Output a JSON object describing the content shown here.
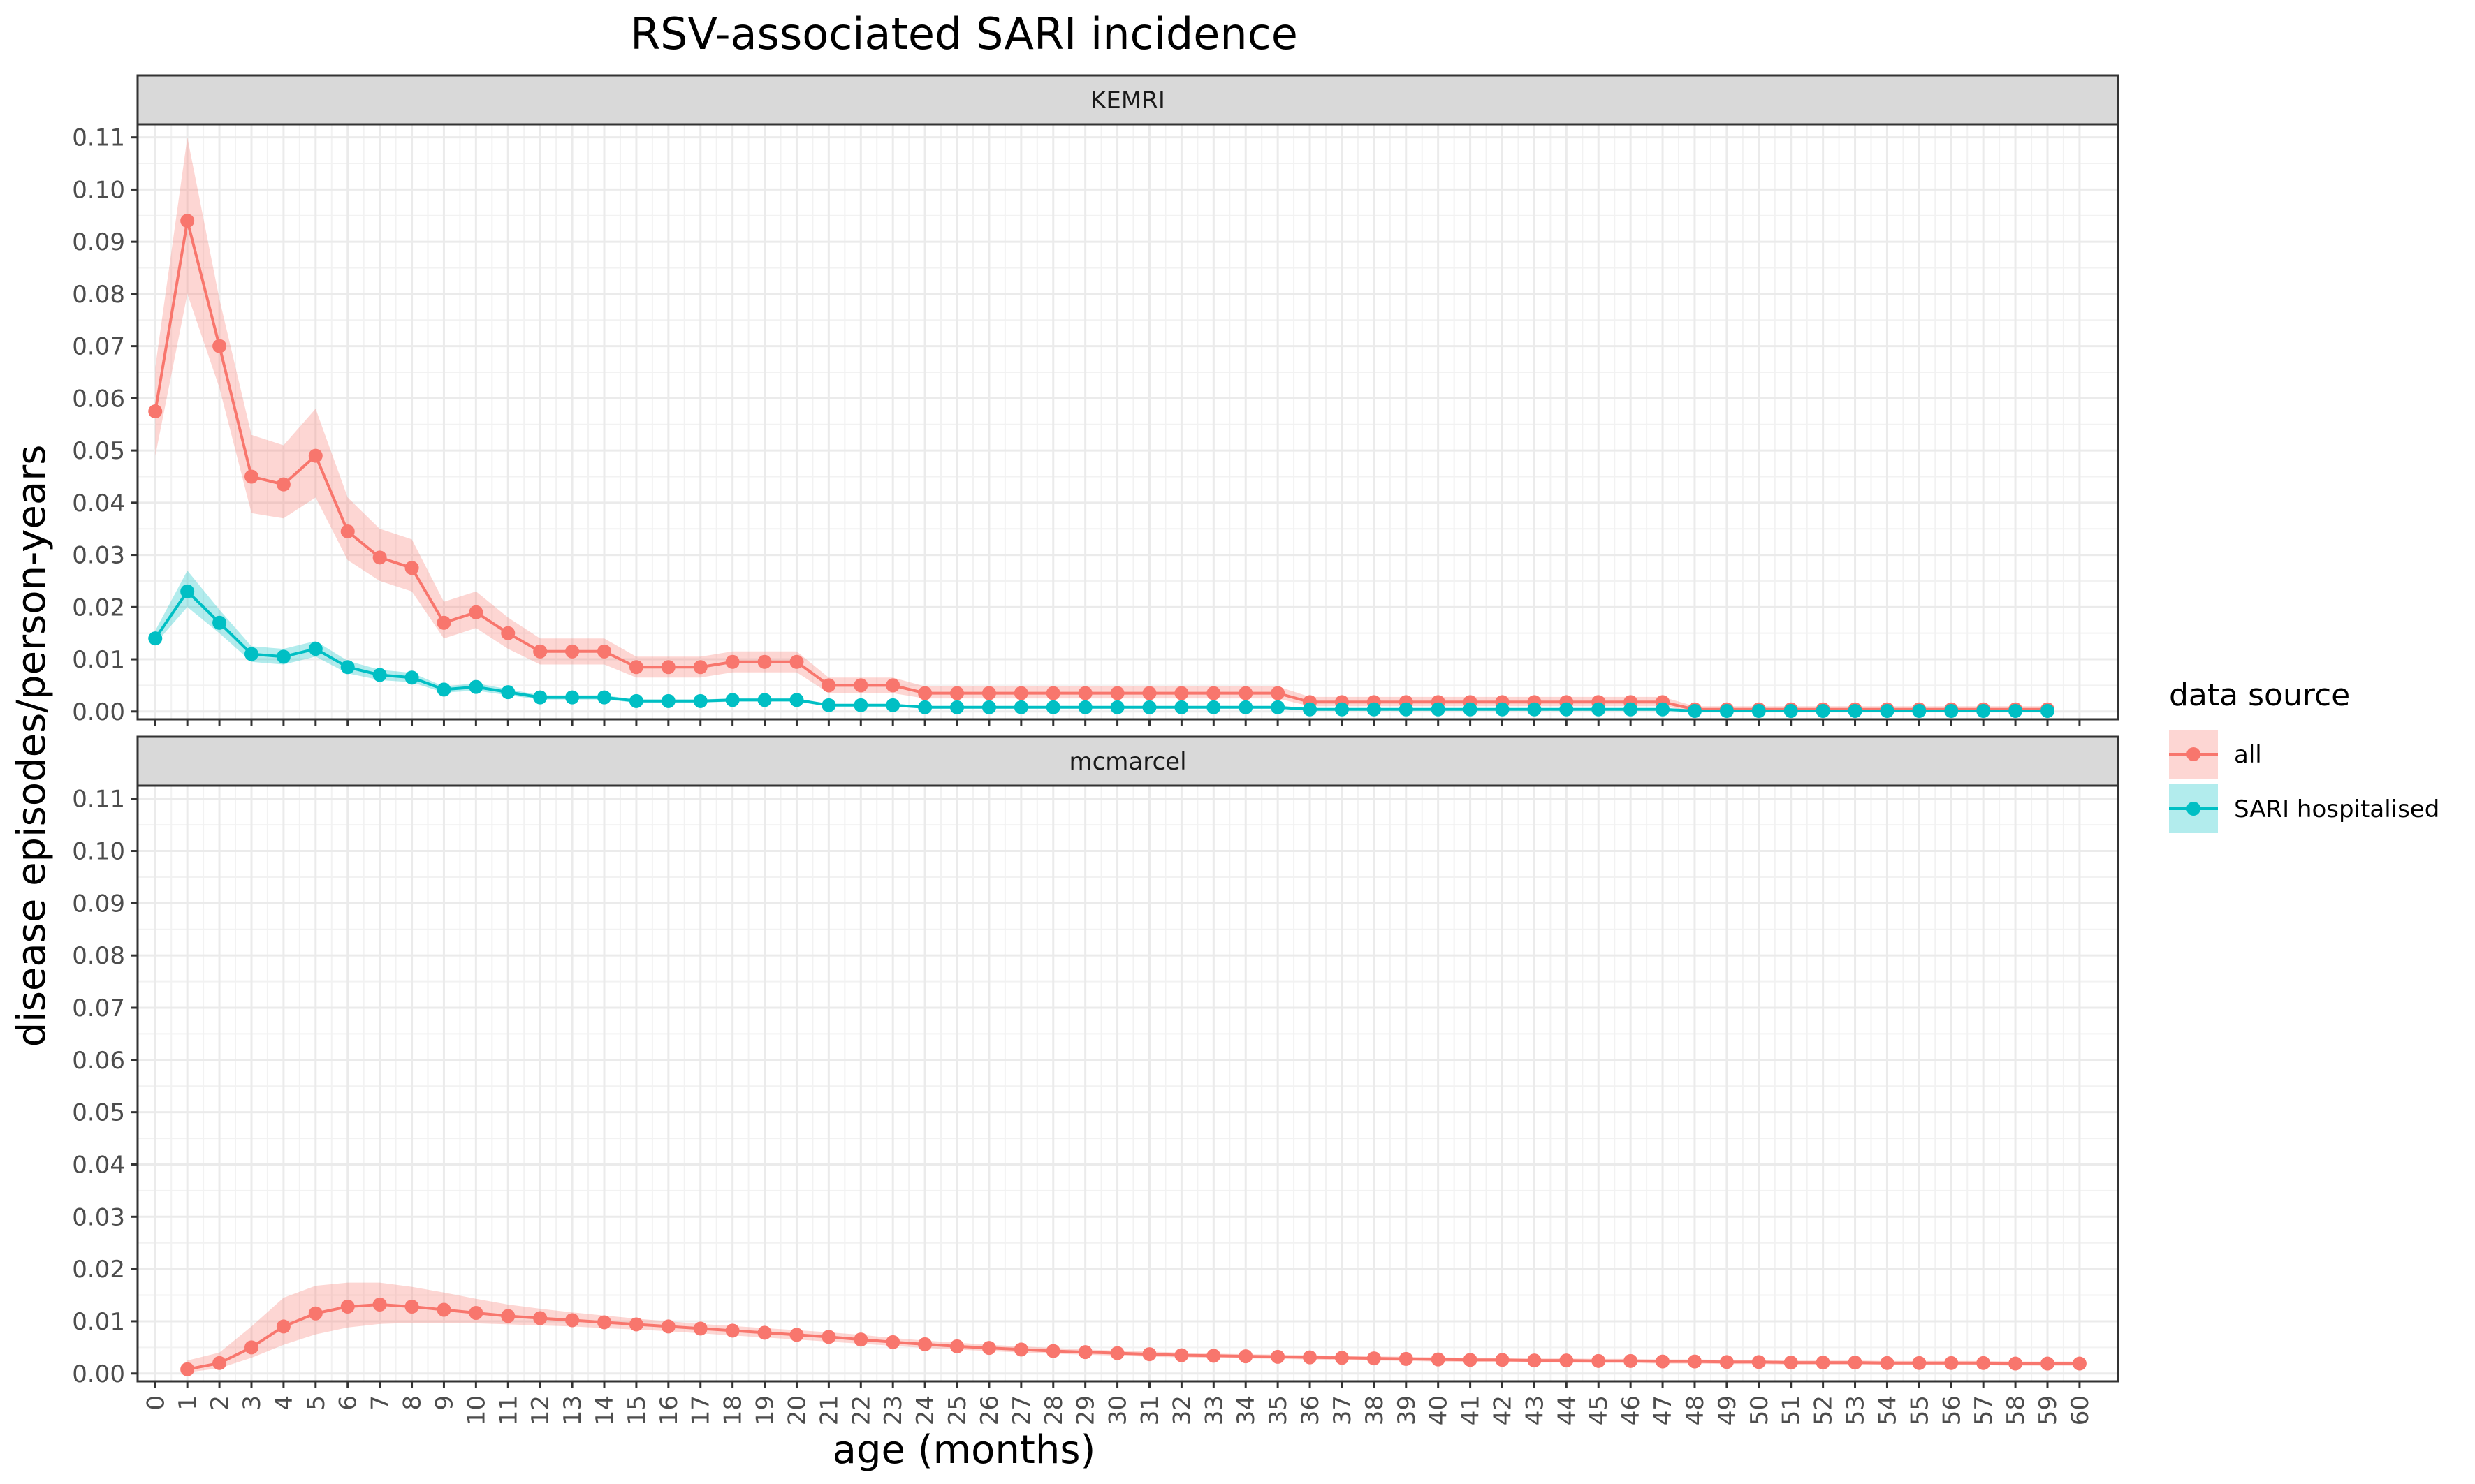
{
  "chart_data": {
    "type": "line",
    "title": "RSV-associated SARI incidence",
    "xlabel": "age (months)",
    "ylabel": "disease episodes/person-years",
    "ylim": [
      0,
      0.11
    ],
    "y_ticks": [
      "0.00",
      "0.01",
      "0.02",
      "0.03",
      "0.04",
      "0.05",
      "0.06",
      "0.07",
      "0.08",
      "0.09",
      "0.10",
      "0.11"
    ],
    "x_ticks": [
      "0",
      "1",
      "2",
      "3",
      "4",
      "5",
      "6",
      "7",
      "8",
      "9",
      "10",
      "11",
      "12",
      "13",
      "14",
      "15",
      "16",
      "17",
      "18",
      "19",
      "20",
      "21",
      "22",
      "23",
      "24",
      "25",
      "26",
      "27",
      "28",
      "29",
      "30",
      "31",
      "32",
      "33",
      "34",
      "35",
      "36",
      "37",
      "38",
      "39",
      "40",
      "41",
      "42",
      "43",
      "44",
      "45",
      "46",
      "47",
      "48",
      "49",
      "50",
      "51",
      "52",
      "53",
      "54",
      "55",
      "56",
      "57",
      "58",
      "59",
      "60"
    ],
    "grid": true,
    "legend": {
      "title": "data source",
      "placement": "right",
      "entries": [
        {
          "label": "all",
          "color": "#F8766D"
        },
        {
          "label": "SARI hospitalised",
          "color": "#00BFC4"
        }
      ]
    },
    "panels": [
      {
        "name": "KEMRI",
        "series": [
          {
            "name": "all",
            "color": "#F8766D",
            "x": [
              0,
              1,
              2,
              3,
              4,
              5,
              6,
              7,
              8,
              9,
              10,
              11,
              12,
              13,
              14,
              15,
              16,
              17,
              18,
              19,
              20,
              21,
              22,
              23,
              24,
              25,
              26,
              27,
              28,
              29,
              30,
              31,
              32,
              33,
              34,
              35,
              36,
              37,
              38,
              39,
              40,
              41,
              42,
              43,
              44,
              45,
              46,
              47,
              48,
              49,
              50,
              51,
              52,
              53,
              54,
              55,
              56,
              57,
              58,
              59
            ],
            "y": [
              0.0575,
              0.094,
              0.07,
              0.045,
              0.0435,
              0.049,
              0.0345,
              0.0295,
              0.0275,
              0.017,
              0.019,
              0.015,
              0.0115,
              0.0115,
              0.0115,
              0.0085,
              0.0085,
              0.0085,
              0.0095,
              0.0095,
              0.0095,
              0.005,
              0.005,
              0.005,
              0.0035,
              0.0035,
              0.0035,
              0.0035,
              0.0035,
              0.0035,
              0.0035,
              0.0035,
              0.0035,
              0.0035,
              0.0035,
              0.0035,
              0.0018,
              0.0018,
              0.0018,
              0.0018,
              0.0018,
              0.0018,
              0.0018,
              0.0018,
              0.0018,
              0.0018,
              0.0018,
              0.0018,
              0.0004,
              0.0004,
              0.0004,
              0.0004,
              0.0004,
              0.0004,
              0.0004,
              0.0004,
              0.0004,
              0.0004,
              0.0004,
              0.0004
            ],
            "lower": [
              0.049,
              0.08,
              0.062,
              0.038,
              0.037,
              0.041,
              0.029,
              0.025,
              0.023,
              0.014,
              0.016,
              0.012,
              0.009,
              0.009,
              0.009,
              0.0065,
              0.0065,
              0.0065,
              0.0075,
              0.0075,
              0.0075,
              0.0035,
              0.0035,
              0.0035,
              0.0025,
              0.0025,
              0.0025,
              0.0025,
              0.0025,
              0.0025,
              0.0025,
              0.0025,
              0.0025,
              0.0025,
              0.0025,
              0.0025,
              0.001,
              0.001,
              0.001,
              0.001,
              0.001,
              0.001,
              0.001,
              0.001,
              0.001,
              0.001,
              0.001,
              0.001,
              0.0,
              0.0,
              0.0,
              0.0,
              0.0,
              0.0,
              0.0,
              0.0,
              0.0,
              0.0,
              0.0,
              0.0
            ],
            "upper": [
              0.066,
              0.11,
              0.079,
              0.053,
              0.051,
              0.058,
              0.041,
              0.035,
              0.033,
              0.021,
              0.023,
              0.018,
              0.014,
              0.014,
              0.014,
              0.0105,
              0.0105,
              0.0105,
              0.0115,
              0.0115,
              0.0115,
              0.0065,
              0.0065,
              0.0065,
              0.0048,
              0.0048,
              0.0048,
              0.0048,
              0.0048,
              0.0048,
              0.0048,
              0.0048,
              0.0048,
              0.0048,
              0.0048,
              0.0048,
              0.0028,
              0.0028,
              0.0028,
              0.0028,
              0.0028,
              0.0028,
              0.0028,
              0.0028,
              0.0028,
              0.0028,
              0.0028,
              0.0028,
              0.001,
              0.001,
              0.001,
              0.001,
              0.001,
              0.001,
              0.001,
              0.001,
              0.001,
              0.001,
              0.001,
              0.001
            ]
          },
          {
            "name": "SARI hospitalised",
            "color": "#00BFC4",
            "x": [
              0,
              1,
              2,
              3,
              4,
              5,
              6,
              7,
              8,
              9,
              10,
              11,
              12,
              13,
              14,
              15,
              16,
              17,
              18,
              19,
              20,
              21,
              22,
              23,
              24,
              25,
              26,
              27,
              28,
              29,
              30,
              31,
              32,
              33,
              34,
              35,
              36,
              37,
              38,
              39,
              40,
              41,
              42,
              43,
              44,
              45,
              46,
              47,
              48,
              49,
              50,
              51,
              52,
              53,
              54,
              55,
              56,
              57,
              58,
              59
            ],
            "y": [
              0.014,
              0.023,
              0.017,
              0.011,
              0.0105,
              0.012,
              0.0085,
              0.007,
              0.0065,
              0.0042,
              0.0047,
              0.0037,
              0.0027,
              0.0027,
              0.0027,
              0.002,
              0.002,
              0.002,
              0.0022,
              0.0022,
              0.0022,
              0.0012,
              0.0012,
              0.0012,
              0.0008,
              0.0008,
              0.0008,
              0.0008,
              0.0008,
              0.0008,
              0.0008,
              0.0008,
              0.0008,
              0.0008,
              0.0008,
              0.0008,
              0.0004,
              0.0004,
              0.0004,
              0.0004,
              0.0004,
              0.0004,
              0.0004,
              0.0004,
              0.0004,
              0.0004,
              0.0004,
              0.0004,
              0.0001,
              0.0001,
              0.0001,
              0.0001,
              0.0001,
              0.0001,
              0.0001,
              0.0001,
              0.0001,
              0.0001,
              0.0001,
              0.0001
            ],
            "lower": [
              0.013,
              0.02,
              0.015,
              0.0095,
              0.009,
              0.0105,
              0.0073,
              0.006,
              0.0056,
              0.0036,
              0.004,
              0.0031,
              0.0023,
              0.0023,
              0.0023,
              0.0017,
              0.0017,
              0.0017,
              0.0019,
              0.0019,
              0.0019,
              0.001,
              0.001,
              0.001,
              0.0006,
              0.0006,
              0.0006,
              0.0006,
              0.0006,
              0.0006,
              0.0006,
              0.0006,
              0.0006,
              0.0006,
              0.0006,
              0.0006,
              0.0003,
              0.0003,
              0.0003,
              0.0003,
              0.0003,
              0.0003,
              0.0003,
              0.0003,
              0.0003,
              0.0003,
              0.0003,
              0.0003,
              0.0,
              0.0,
              0.0,
              0.0,
              0.0,
              0.0,
              0.0,
              0.0,
              0.0,
              0.0,
              0.0,
              0.0
            ],
            "upper": [
              0.0155,
              0.027,
              0.0195,
              0.0125,
              0.012,
              0.0135,
              0.0097,
              0.008,
              0.0074,
              0.0048,
              0.0054,
              0.0043,
              0.0031,
              0.0031,
              0.0031,
              0.0023,
              0.0023,
              0.0023,
              0.0025,
              0.0025,
              0.0025,
              0.0014,
              0.0014,
              0.0014,
              0.001,
              0.001,
              0.001,
              0.001,
              0.001,
              0.001,
              0.001,
              0.001,
              0.001,
              0.001,
              0.001,
              0.001,
              0.0006,
              0.0006,
              0.0006,
              0.0006,
              0.0006,
              0.0006,
              0.0006,
              0.0006,
              0.0006,
              0.0006,
              0.0006,
              0.0006,
              0.0002,
              0.0002,
              0.0002,
              0.0002,
              0.0002,
              0.0002,
              0.0002,
              0.0002,
              0.0002,
              0.0002,
              0.0002,
              0.0002
            ]
          }
        ]
      },
      {
        "name": "mcmarcel",
        "series": [
          {
            "name": "all",
            "color": "#F8766D",
            "x": [
              1,
              2,
              3,
              4,
              5,
              6,
              7,
              8,
              9,
              10,
              11,
              12,
              13,
              14,
              15,
              16,
              17,
              18,
              19,
              20,
              21,
              22,
              23,
              24,
              25,
              26,
              27,
              28,
              29,
              30,
              31,
              32,
              33,
              34,
              35,
              36,
              37,
              38,
              39,
              40,
              41,
              42,
              43,
              44,
              45,
              46,
              47,
              48,
              49,
              50,
              51,
              52,
              53,
              54,
              55,
              56,
              57,
              58,
              59,
              60
            ],
            "y": [
              0.0008,
              0.002,
              0.005,
              0.009,
              0.0115,
              0.0128,
              0.0132,
              0.0128,
              0.0122,
              0.0116,
              0.011,
              0.0106,
              0.0102,
              0.0098,
              0.0094,
              0.009,
              0.0086,
              0.0082,
              0.0078,
              0.0074,
              0.007,
              0.0065,
              0.006,
              0.0056,
              0.0052,
              0.0049,
              0.0046,
              0.0043,
              0.0041,
              0.0039,
              0.0037,
              0.0035,
              0.0034,
              0.0033,
              0.0032,
              0.0031,
              0.003,
              0.0029,
              0.0028,
              0.0027,
              0.0026,
              0.0026,
              0.0025,
              0.0025,
              0.0024,
              0.0024,
              0.0023,
              0.0023,
              0.0022,
              0.0022,
              0.0021,
              0.0021,
              0.0021,
              0.002,
              0.002,
              0.002,
              0.002,
              0.0019,
              0.0019,
              0.0019
            ],
            "lower": [
              0.0002,
              0.001,
              0.003,
              0.0055,
              0.0075,
              0.0088,
              0.0095,
              0.0097,
              0.0097,
              0.0096,
              0.0094,
              0.0092,
              0.009,
              0.0087,
              0.0084,
              0.0081,
              0.0077,
              0.0073,
              0.0069,
              0.0065,
              0.0061,
              0.0057,
              0.0053,
              0.0049,
              0.0046,
              0.0043,
              0.004,
              0.0038,
              0.0036,
              0.0034,
              0.0032,
              0.0031,
              0.003,
              0.0029,
              0.0028,
              0.0027,
              0.0026,
              0.0025,
              0.0024,
              0.0023,
              0.0022,
              0.0022,
              0.0021,
              0.0021,
              0.002,
              0.002,
              0.0019,
              0.0019,
              0.0018,
              0.0018,
              0.0017,
              0.0017,
              0.0017,
              0.0016,
              0.0016,
              0.0016,
              0.0016,
              0.0015,
              0.0015,
              0.0015
            ],
            "upper": [
              0.0025,
              0.004,
              0.009,
              0.0145,
              0.0168,
              0.0174,
              0.0174,
              0.0166,
              0.0155,
              0.0143,
              0.0132,
              0.0124,
              0.0117,
              0.0111,
              0.0105,
              0.01,
              0.0095,
              0.0091,
              0.0087,
              0.0083,
              0.0079,
              0.0074,
              0.0068,
              0.0063,
              0.0059,
              0.0055,
              0.0052,
              0.0049,
              0.0046,
              0.0044,
              0.0042,
              0.004,
              0.0038,
              0.0037,
              0.0036,
              0.0035,
              0.0034,
              0.0033,
              0.0032,
              0.0031,
              0.003,
              0.003,
              0.0029,
              0.0029,
              0.0028,
              0.0028,
              0.0027,
              0.0027,
              0.0026,
              0.0026,
              0.0025,
              0.0025,
              0.0025,
              0.0024,
              0.0024,
              0.0024,
              0.0024,
              0.0023,
              0.0023,
              0.0023
            ]
          }
        ]
      }
    ]
  }
}
